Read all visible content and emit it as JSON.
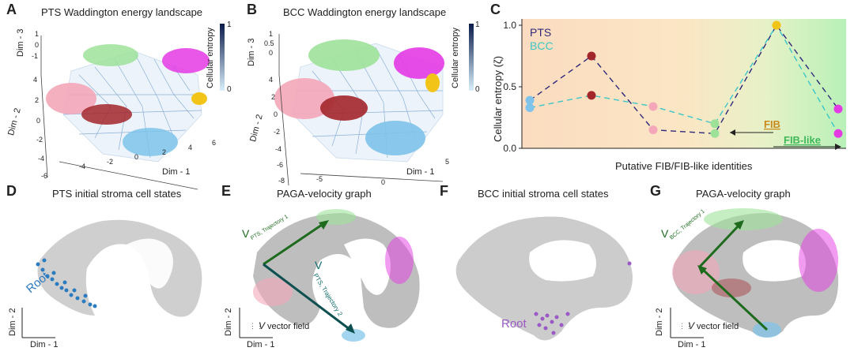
{
  "panels": {
    "A": {
      "letter": "A",
      "title": "PTS Waddington energy landscape",
      "z_axis": "Dim - 3",
      "y_axis": "Dim - 2",
      "x_axis": "Dim - 1",
      "z_ticks": [
        "1",
        "0",
        "-1"
      ],
      "y_ticks": [
        "4",
        "2",
        "0",
        "-2",
        "-4",
        "-6"
      ],
      "x_ticks": [
        "-4",
        "-2",
        "0",
        "2",
        "4",
        "6"
      ],
      "colorbar_label": "Cellular entropy",
      "colorbar_ticks": [
        "1",
        "0"
      ]
    },
    "B": {
      "letter": "B",
      "title": "BCC Waddington energy landscape",
      "z_axis": "Dim - 3",
      "y_axis": "Dim - 2",
      "x_axis": "Dim - 1",
      "z_ticks": [
        "1",
        "0.5",
        "0"
      ],
      "y_ticks": [
        "4",
        "2",
        "0",
        "-2",
        "-4",
        "-6",
        "-8"
      ],
      "x_ticks": [
        "-5",
        "0",
        "5"
      ],
      "colorbar_label": "Cellular entropy",
      "colorbar_ticks": [
        "1",
        "0"
      ]
    },
    "C": {
      "letter": "C",
      "annotations": [
        "FIB",
        "FIB-like"
      ]
    },
    "D": {
      "letter": "D",
      "title": "PTS initial stroma cell states",
      "root_label": "Root",
      "x_axis": "Dim - 1",
      "y_axis": "Dim - 2"
    },
    "E": {
      "letter": "E",
      "title": "PAGA-velocity graph",
      "vector_symbol": "V",
      "traj1_label": "PTS, Trajectory 1",
      "traj2_label": "PTS, Trajectory 2",
      "field_legend": "vector field",
      "x_axis": "Dim - 1",
      "y_axis": "Dim - 2"
    },
    "F": {
      "letter": "F",
      "title": "BCC initial stroma cell states",
      "root_label": "Root"
    },
    "G": {
      "letter": "G",
      "title": "PAGA-velocity graph",
      "vector_symbol": "V",
      "traj1_label": "BCC, Trajectory 1",
      "field_legend": "vector field",
      "x_axis": "Dim - 1",
      "y_axis": "Dim - 2"
    }
  },
  "colors": {
    "pts": "#2e2a7a",
    "bcc": "#3cc6c6",
    "pink": "#f4a7b9",
    "green": "#9ee29a",
    "magenta": "#e43ae4",
    "dark_red": "#a3262b",
    "light_blue": "#7ec3ea",
    "yellow": "#f2c418",
    "root_blue": "#2b7bbf",
    "root_purple": "#9b59c6",
    "cell_grey": "#cccccc"
  },
  "chart_data": {
    "type": "line",
    "xlabel": "Putative FIB/FIB-like identities",
    "ylabel": "Cellular entropy (ζ)",
    "ylim": [
      0,
      1.0
    ],
    "yticks": [
      "0.0",
      "0.5",
      "1.0"
    ],
    "x": [
      1,
      2,
      3,
      4,
      5,
      6
    ],
    "point_colors": [
      "#7ec3ea",
      "#a3262b",
      "#f4a7b9",
      "#9ee29a",
      "#f2c418",
      "#e43ae4"
    ],
    "legend_position": "top-left",
    "series": [
      {
        "name": "PTS",
        "color": "#2e2a7a",
        "values": [
          0.39,
          0.75,
          0.15,
          0.12,
          1.0,
          0.32
        ]
      },
      {
        "name": "BCC",
        "color": "#3cc6c6",
        "values": [
          0.33,
          0.43,
          0.34,
          0.2,
          1.0,
          0.12
        ]
      }
    ]
  }
}
